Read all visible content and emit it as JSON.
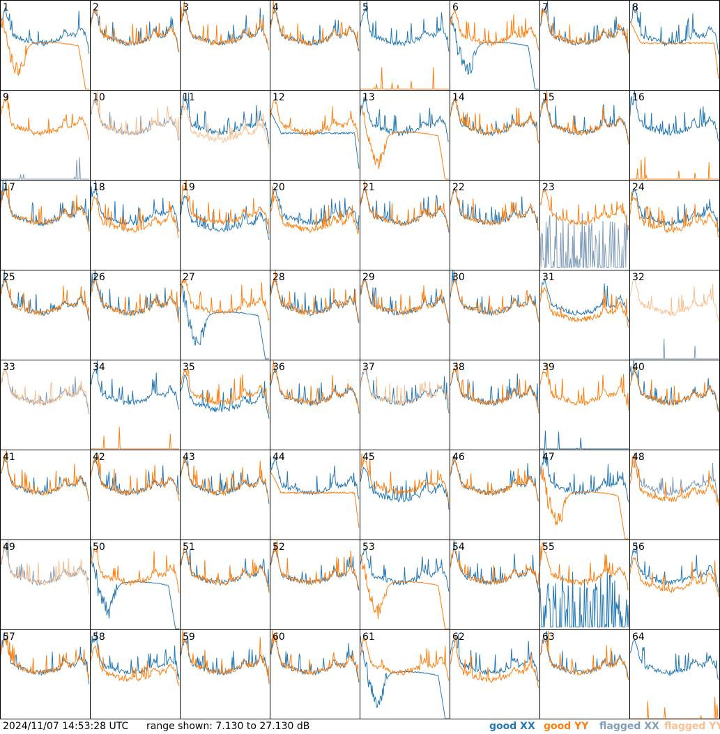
{
  "footer": {
    "timestamp": "2024/11/07 14:53:28 UTC",
    "range_text": "range shown: 7.130 to 27.130 dB"
  },
  "legend": [
    {
      "label": "good XX",
      "color": "#2478b4"
    },
    {
      "label": "good YY",
      "color": "#ff7f0e"
    },
    {
      "label": "flagged XX",
      "color": "#7f9cb8"
    },
    {
      "label": "flagged YY",
      "color": "#f8c091"
    }
  ],
  "chart_data": {
    "type": "line",
    "grid": "8x8 small multiples",
    "ylim": [
      7.13,
      27.13
    ],
    "yunit": "dB",
    "series_names": [
      "good XX",
      "good YY",
      "flagged XX",
      "flagged YY"
    ],
    "panels": [
      {
        "id": "1",
        "xx": "good",
        "yy": "good",
        "mode": "yy_bathtub"
      },
      {
        "id": "2",
        "xx": "good",
        "yy": "good",
        "mode": "normal"
      },
      {
        "id": "3",
        "xx": "good",
        "yy": "good",
        "mode": "normal"
      },
      {
        "id": "4",
        "xx": "good",
        "yy": "good",
        "mode": "normal"
      },
      {
        "id": "5",
        "xx": "good",
        "yy": "good",
        "mode": "yy_dead"
      },
      {
        "id": "6",
        "xx": "good",
        "yy": "good",
        "mode": "xx_bathtub"
      },
      {
        "id": "7",
        "xx": "good",
        "yy": "good",
        "mode": "normal"
      },
      {
        "id": "8",
        "xx": "good",
        "yy": "good",
        "mode": "yy_flat"
      },
      {
        "id": "9",
        "xx": "flagged",
        "yy": "good",
        "mode": "xx_dead"
      },
      {
        "id": "10",
        "xx": "flagged",
        "yy": "flagged",
        "mode": "normal"
      },
      {
        "id": "11",
        "xx": "good",
        "yy": "flagged",
        "mode": "split"
      },
      {
        "id": "12",
        "xx": "good",
        "yy": "good",
        "mode": "xx_flat"
      },
      {
        "id": "13",
        "xx": "good",
        "yy": "good",
        "mode": "yy_bathtub"
      },
      {
        "id": "14",
        "xx": "good",
        "yy": "good",
        "mode": "normal"
      },
      {
        "id": "15",
        "xx": "good",
        "yy": "good",
        "mode": "normal"
      },
      {
        "id": "16",
        "xx": "good",
        "yy": "good",
        "mode": "yy_dead"
      },
      {
        "id": "17",
        "xx": "good",
        "yy": "good",
        "mode": "normal"
      },
      {
        "id": "18",
        "xx": "good",
        "yy": "good",
        "mode": "split"
      },
      {
        "id": "19",
        "xx": "good",
        "yy": "good",
        "mode": "split_xx_low"
      },
      {
        "id": "20",
        "xx": "good",
        "yy": "good",
        "mode": "split"
      },
      {
        "id": "21",
        "xx": "good",
        "yy": "good",
        "mode": "normal"
      },
      {
        "id": "22",
        "xx": "good",
        "yy": "good",
        "mode": "normal"
      },
      {
        "id": "23",
        "xx": "flagged",
        "yy": "good",
        "mode": "xx_noise"
      },
      {
        "id": "24",
        "xx": "good",
        "yy": "good",
        "mode": "split"
      },
      {
        "id": "25",
        "xx": "good",
        "yy": "good",
        "mode": "normal"
      },
      {
        "id": "26",
        "xx": "good",
        "yy": "good",
        "mode": "normal"
      },
      {
        "id": "27",
        "xx": "good",
        "yy": "good",
        "mode": "xx_bathtub"
      },
      {
        "id": "28",
        "xx": "good",
        "yy": "good",
        "mode": "normal"
      },
      {
        "id": "29",
        "xx": "good",
        "yy": "good",
        "mode": "normal"
      },
      {
        "id": "30",
        "xx": "good",
        "yy": "good",
        "mode": "normal"
      },
      {
        "id": "31",
        "xx": "good",
        "yy": "good",
        "mode": "split"
      },
      {
        "id": "32",
        "xx": "flagged",
        "yy": "flagged",
        "mode": "xx_dead"
      },
      {
        "id": "33",
        "xx": "flagged",
        "yy": "flagged",
        "mode": "normal"
      },
      {
        "id": "34",
        "xx": "good",
        "yy": "good",
        "mode": "yy_dead"
      },
      {
        "id": "35",
        "xx": "good",
        "yy": "good",
        "mode": "split_xx_low"
      },
      {
        "id": "36",
        "xx": "good",
        "yy": "good",
        "mode": "normal"
      },
      {
        "id": "37",
        "xx": "good",
        "yy": "flagged",
        "mode": "normal"
      },
      {
        "id": "38",
        "xx": "good",
        "yy": "good",
        "mode": "normal"
      },
      {
        "id": "39",
        "xx": "good",
        "yy": "good",
        "mode": "xx_dead"
      },
      {
        "id": "40",
        "xx": "good",
        "yy": "good",
        "mode": "normal"
      },
      {
        "id": "41",
        "xx": "good",
        "yy": "good",
        "mode": "normal"
      },
      {
        "id": "42",
        "xx": "good",
        "yy": "good",
        "mode": "normal"
      },
      {
        "id": "43",
        "xx": "good",
        "yy": "good",
        "mode": "normal"
      },
      {
        "id": "44",
        "xx": "good",
        "yy": "good",
        "mode": "yy_flat"
      },
      {
        "id": "45",
        "xx": "good",
        "yy": "good",
        "mode": "split_xx_low"
      },
      {
        "id": "46",
        "xx": "good",
        "yy": "good",
        "mode": "normal"
      },
      {
        "id": "47",
        "xx": "good",
        "yy": "good",
        "mode": "yy_bathtub"
      },
      {
        "id": "48",
        "xx": "flagged",
        "yy": "good",
        "mode": "split"
      },
      {
        "id": "49",
        "xx": "flagged",
        "yy": "flagged",
        "mode": "normal"
      },
      {
        "id": "50",
        "xx": "good",
        "yy": "good",
        "mode": "xx_bathtub"
      },
      {
        "id": "51",
        "xx": "good",
        "yy": "good",
        "mode": "normal"
      },
      {
        "id": "52",
        "xx": "good",
        "yy": "good",
        "mode": "normal"
      },
      {
        "id": "53",
        "xx": "good",
        "yy": "good",
        "mode": "yy_bathtub"
      },
      {
        "id": "54",
        "xx": "good",
        "yy": "good",
        "mode": "normal"
      },
      {
        "id": "55",
        "xx": "good",
        "yy": "good",
        "mode": "xx_noise"
      },
      {
        "id": "56",
        "xx": "good",
        "yy": "good",
        "mode": "split"
      },
      {
        "id": "57",
        "xx": "good",
        "yy": "good",
        "mode": "normal"
      },
      {
        "id": "58",
        "xx": "good",
        "yy": "good",
        "mode": "split"
      },
      {
        "id": "59",
        "xx": "good",
        "yy": "good",
        "mode": "normal"
      },
      {
        "id": "60",
        "xx": "good",
        "yy": "good",
        "mode": "normal"
      },
      {
        "id": "61",
        "xx": "good",
        "yy": "good",
        "mode": "xx_bathtub"
      },
      {
        "id": "62",
        "xx": "good",
        "yy": "good",
        "mode": "split"
      },
      {
        "id": "63",
        "xx": "good",
        "yy": "good",
        "mode": "normal"
      },
      {
        "id": "64",
        "xx": "good",
        "yy": "good",
        "mode": "yy_dead"
      }
    ]
  }
}
